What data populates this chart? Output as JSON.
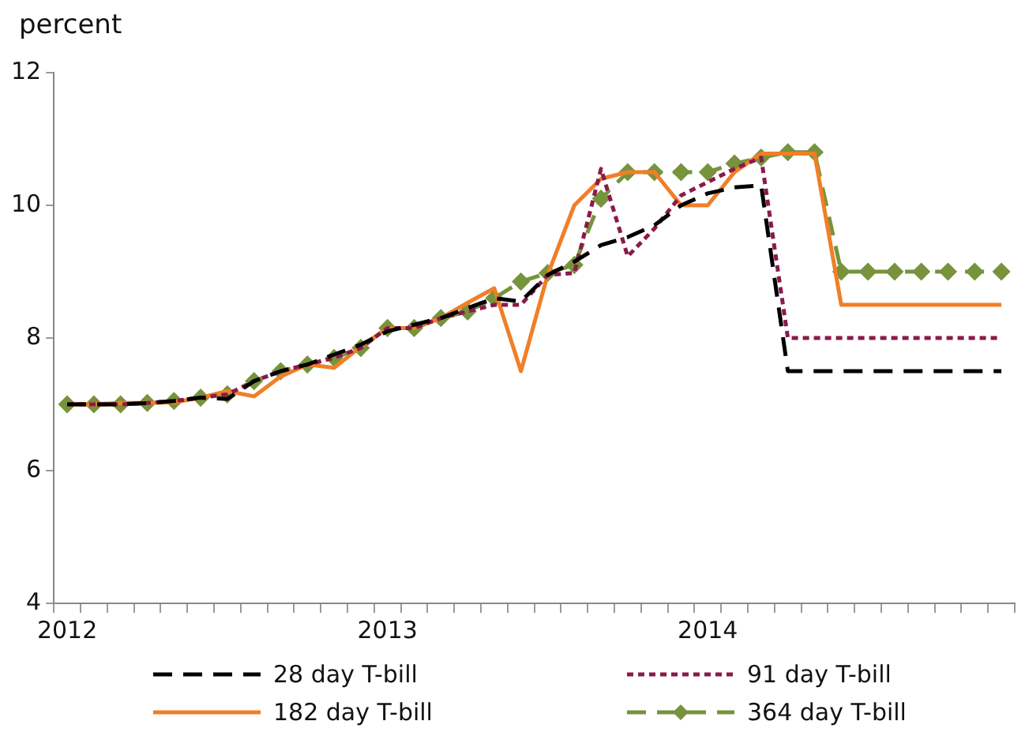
{
  "chart_data": {
    "type": "line",
    "ylabel": "percent",
    "categories": [
      "2012",
      null,
      null,
      null,
      null,
      null,
      null,
      null,
      null,
      null,
      null,
      null,
      "2013",
      null,
      null,
      null,
      null,
      null,
      null,
      null,
      null,
      null,
      null,
      null,
      "2014",
      null,
      null,
      null,
      null,
      null,
      null,
      null,
      null,
      null,
      null,
      null
    ],
    "ylim": [
      4,
      12
    ],
    "yticks": [
      4,
      6,
      8,
      10,
      12
    ],
    "grid": false,
    "legend": "bottom",
    "marker": "none",
    "series": [
      {
        "name": "28 day T-bill",
        "color": "#000000",
        "line_style": "dashed",
        "values": [
          7.0,
          7.0,
          7.0,
          7.02,
          7.05,
          7.1,
          7.08,
          7.35,
          7.5,
          7.6,
          7.75,
          7.9,
          8.1,
          8.2,
          8.3,
          8.45,
          8.6,
          8.55,
          8.95,
          9.15,
          9.4,
          9.52,
          9.7,
          10.0,
          10.18,
          10.27,
          10.3,
          7.5,
          7.5,
          7.5,
          7.5,
          7.5,
          7.5,
          7.5,
          7.5,
          7.5
        ]
      },
      {
        "name": "91 day T-bill",
        "color": "#8b1a4a",
        "line_style": "dotted",
        "values": [
          7.0,
          7.0,
          7.0,
          7.02,
          7.05,
          7.1,
          7.15,
          7.35,
          7.5,
          7.6,
          7.7,
          7.85,
          8.15,
          8.15,
          8.3,
          8.4,
          8.5,
          8.5,
          8.95,
          8.98,
          10.55,
          9.23,
          9.65,
          10.15,
          10.35,
          10.55,
          10.72,
          8.0,
          8.0,
          8.0,
          8.0,
          8.0,
          8.0,
          8.0,
          8.0,
          8.0
        ]
      },
      {
        "name": "182 day T-bill",
        "color": "#f07f28",
        "line_style": "solid",
        "values": [
          7.0,
          7.0,
          7.02,
          7.02,
          7.03,
          7.1,
          7.2,
          7.12,
          7.42,
          7.6,
          7.55,
          7.87,
          8.15,
          8.15,
          8.3,
          8.53,
          8.75,
          7.5,
          8.95,
          10.0,
          10.4,
          10.5,
          10.5,
          10.0,
          10.0,
          10.5,
          10.78,
          10.78,
          10.78,
          8.5,
          8.5,
          8.5,
          8.5,
          8.5,
          8.5,
          8.5
        ]
      },
      {
        "name": "364 day T-bill",
        "color": "#77933c",
        "line_style": "dashed",
        "marker": "diamond",
        "values": [
          7.0,
          7.0,
          7.0,
          7.02,
          7.05,
          7.1,
          7.15,
          7.35,
          7.5,
          7.6,
          7.7,
          7.85,
          8.15,
          8.15,
          8.3,
          8.4,
          8.6,
          8.85,
          8.98,
          9.1,
          10.1,
          10.5,
          10.5,
          10.5,
          10.5,
          10.63,
          10.72,
          10.8,
          10.8,
          9.0,
          9.0,
          9.0,
          9.0,
          9.0,
          9.0,
          9.0
        ]
      }
    ]
  }
}
